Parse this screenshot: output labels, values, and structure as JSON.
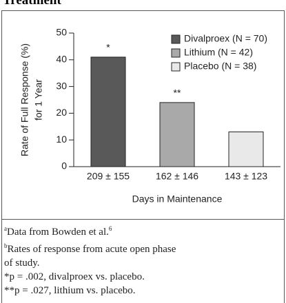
{
  "heading": "Treatment",
  "chart_data": {
    "type": "bar",
    "y_label": [
      "Rate of Full Response (%)",
      "for 1 Year"
    ],
    "x_label": "Days in Maintenance",
    "categories": [
      "209 ± 155",
      "162 ± 146",
      "143 ± 123"
    ],
    "series": [
      {
        "name": "Divalproex (N = 70)",
        "color": "#595959",
        "values": [
          41,
          null,
          null
        ]
      },
      {
        "name": "Lithium (N = 42)",
        "color": "#a9a9a9",
        "values": [
          null,
          24,
          null
        ]
      },
      {
        "name": "Placebo (N = 38)",
        "color": "#e9e9e9",
        "values": [
          null,
          null,
          13
        ]
      }
    ],
    "bar_annotations": [
      "*",
      "**",
      null
    ],
    "ylim": [
      0,
      50
    ],
    "yticks": [
      0,
      10,
      20,
      30,
      40,
      50
    ],
    "legend": "top-right"
  },
  "footnotes": [
    {
      "mark": "a",
      "text": "Data from Bowden et al.",
      "ref": "6"
    },
    {
      "mark": "b",
      "text": "Rates of response from acute open phase of study."
    },
    {
      "text": "*p = .002, divalproex vs. placebo."
    },
    {
      "text": "**p = .027, lithium vs. placebo."
    }
  ]
}
